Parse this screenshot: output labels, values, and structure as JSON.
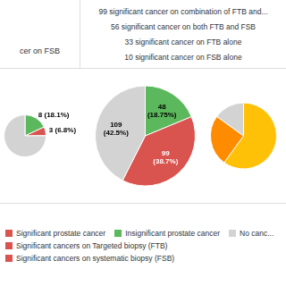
{
  "chart_data": [
    {
      "type": "pie",
      "title": "cer on FSB",
      "values": [
        18.1,
        6.8,
        75.1
      ],
      "colors": [
        "#5cb85c",
        "#d9534f",
        "#d3d3d3"
      ],
      "value_labels": [
        "8 (18.1%)",
        "3 (6.8%)",
        null
      ],
      "data_labels": true
    },
    {
      "type": "pie",
      "values": [
        18.75,
        38.7,
        42.5
      ],
      "colors": [
        "#5cb85c",
        "#d9534f",
        "#d3d3d3"
      ],
      "value_labels": [
        "48\n(18.75%)",
        "99\n(38.7%)",
        "109\n(42.5%)"
      ],
      "data_labels": true,
      "annotations": [
        "99 significant cancer on combination of FTB and...",
        "56 significant cancer on both FTB and FSB",
        "33 significant cancer on FTB alone",
        "10 significant cancer on FSB alone"
      ],
      "legend_entries": [
        {
          "label": "Significant prostate cancer",
          "color": "#d9534f"
        },
        {
          "label": "Insignificant prostate cancer",
          "color": "#5cb85c"
        },
        {
          "label": "No canc...",
          "color": "#d3d3d3"
        },
        {
          "label": "Significant cancers on Targeted biopsy (FTB)",
          "color": "#d9534f"
        },
        {
          "label": "Significant cancers on systematic biopsy (FSB)",
          "color": "#d9534f"
        }
      ]
    },
    {
      "type": "pie",
      "values": [
        60,
        25,
        15
      ],
      "colors": [
        "#ffc107",
        "#ff8c00",
        "#d3d3d3"
      ],
      "data_labels": false
    }
  ]
}
